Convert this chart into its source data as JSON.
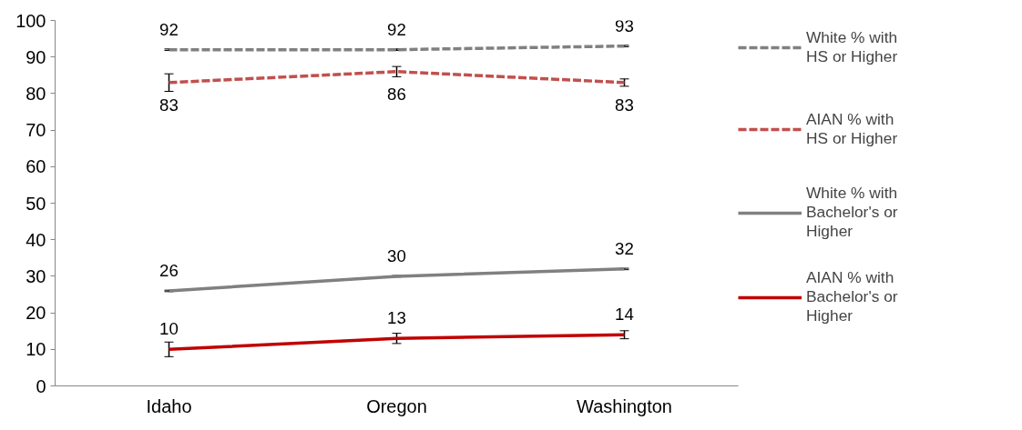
{
  "chart_data": {
    "type": "line",
    "categories": [
      "Idaho",
      "Oregon",
      "Washington"
    ],
    "series": [
      {
        "name": "White % with HS or Higher",
        "color": "#808080",
        "line_style": "dashed",
        "values": [
          92,
          92,
          93
        ],
        "errors": [
          0.2,
          0.2,
          0.2
        ]
      },
      {
        "name": "AIAN % with HS or Higher",
        "color": "#c0504d",
        "line_style": "dashed",
        "values": [
          83,
          86,
          83
        ],
        "errors": [
          2.4,
          1.4,
          1
        ]
      },
      {
        "name": "White % with Bachelor's or Higher",
        "color": "#808080",
        "line_style": "solid",
        "values": [
          26,
          30,
          32
        ],
        "errors": [
          0.2,
          0.2,
          0.2
        ]
      },
      {
        "name": "AIAN % with Bachelor's or Higher",
        "color": "#c00000",
        "line_style": "solid",
        "values": [
          10,
          13,
          14
        ],
        "errors": [
          2,
          1.4,
          1.1
        ]
      }
    ],
    "ylim": [
      0,
      100
    ],
    "yticks": [
      0,
      10,
      20,
      30,
      40,
      50,
      60,
      70,
      80,
      90,
      100
    ],
    "data_labels": true,
    "legend": "right",
    "grid": false
  }
}
